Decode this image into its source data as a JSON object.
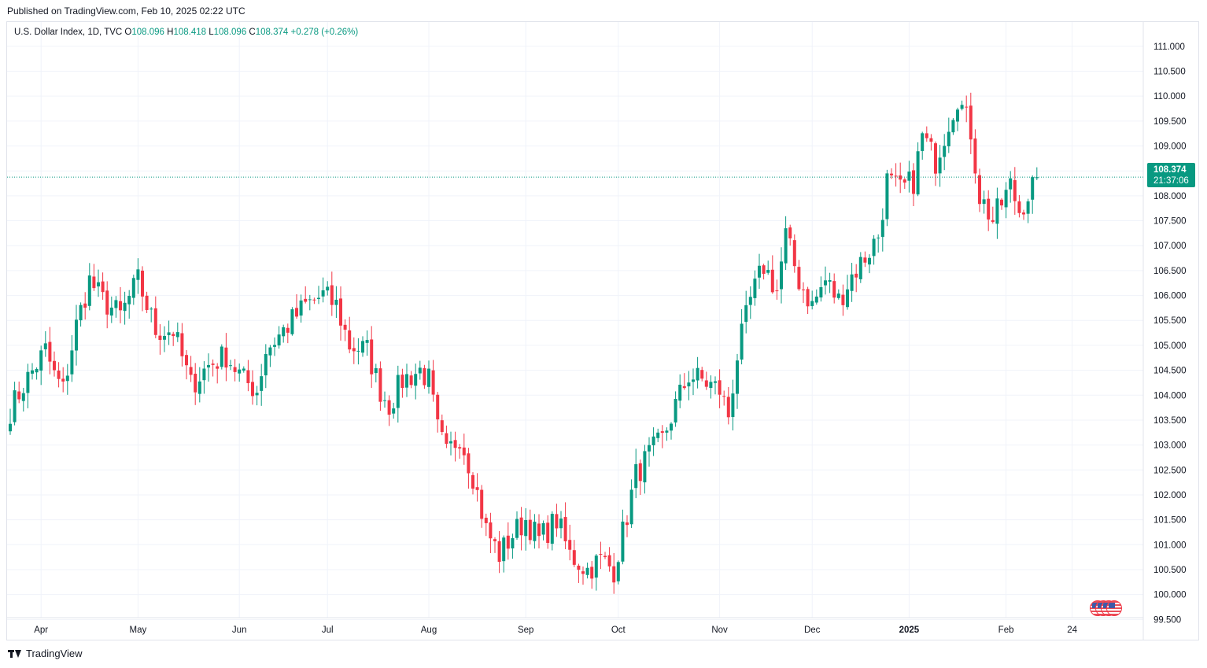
{
  "published": "Published on TradingView.com, Feb 10, 2025 02:22 UTC",
  "legend": {
    "symbol": "U.S. Dollar Index, 1D, TVC",
    "o_label": "O",
    "o_value": "108.096",
    "h_label": "H",
    "h_value": "108.418",
    "l_label": "L",
    "l_value": "108.096",
    "c_label": "C",
    "c_value": "108.374",
    "change": "+0.278 (+0.26%)"
  },
  "price_tag": {
    "price": "108.374",
    "countdown": "21:37:06"
  },
  "footer": {
    "brand": "TradingView"
  },
  "colors": {
    "up": "#089981",
    "down": "#f23645",
    "grid": "#f0f3fa",
    "last_price_line": "#089981"
  },
  "chart_data": {
    "type": "candlestick",
    "title": "U.S. Dollar Index, 1D, TVC",
    "ylim": [
      99.3,
      111.25
    ],
    "y_ticks": [
      "111.000",
      "110.500",
      "110.000",
      "109.500",
      "109.000",
      "108.500",
      "108.000",
      "107.500",
      "107.000",
      "106.500",
      "106.000",
      "105.500",
      "105.000",
      "104.500",
      "104.000",
      "103.500",
      "103.000",
      "102.500",
      "102.000",
      "101.500",
      "101.000",
      "100.500",
      "100.000",
      "99.500"
    ],
    "x_ticks": [
      {
        "label": "Apr",
        "index": 7,
        "bold": false
      },
      {
        "label": "May",
        "index": 29,
        "bold": false
      },
      {
        "label": "Jun",
        "index": 52,
        "bold": false
      },
      {
        "label": "Jul",
        "index": 72,
        "bold": false
      },
      {
        "label": "Aug",
        "index": 95,
        "bold": false
      },
      {
        "label": "Sep",
        "index": 117,
        "bold": false
      },
      {
        "label": "Oct",
        "index": 138,
        "bold": false
      },
      {
        "label": "Nov",
        "index": 161,
        "bold": false
      },
      {
        "label": "Dec",
        "index": 182,
        "bold": false
      },
      {
        "label": "2025",
        "index": 204,
        "bold": true
      },
      {
        "label": "Feb",
        "index": 226,
        "bold": false
      },
      {
        "label": "24",
        "index": 241,
        "bold": false
      }
    ],
    "last_price": 108.374,
    "waypoints": [
      [
        0,
        103.7
      ],
      [
        3,
        104.2
      ],
      [
        8,
        104.9
      ],
      [
        10,
        104.4
      ],
      [
        12,
        104.1
      ],
      [
        15,
        105.4
      ],
      [
        18,
        106.3
      ],
      [
        21,
        105.9
      ],
      [
        25,
        105.6
      ],
      [
        29,
        106.3
      ],
      [
        33,
        105.3
      ],
      [
        37,
        105.3
      ],
      [
        41,
        104.2
      ],
      [
        45,
        104.6
      ],
      [
        49,
        104.8
      ],
      [
        53,
        104.3
      ],
      [
        56,
        104.1
      ],
      [
        58,
        104.9
      ],
      [
        62,
        105.3
      ],
      [
        67,
        105.8
      ],
      [
        71,
        106.0
      ],
      [
        74,
        105.8
      ],
      [
        77,
        105.0
      ],
      [
        81,
        104.9
      ],
      [
        84,
        104.1
      ],
      [
        86,
        103.8
      ],
      [
        89,
        104.3
      ],
      [
        93,
        104.5
      ],
      [
        95,
        104.3
      ],
      [
        97,
        103.3
      ],
      [
        99,
        102.8
      ],
      [
        102,
        103.2
      ],
      [
        105,
        102.4
      ],
      [
        108,
        101.3
      ],
      [
        111,
        100.8
      ],
      [
        114,
        101.2
      ],
      [
        117,
        101.5
      ],
      [
        120,
        101.1
      ],
      [
        124,
        101.5
      ],
      [
        127,
        100.8
      ],
      [
        131,
        100.5
      ],
      [
        134,
        100.7
      ],
      [
        137,
        100.5
      ],
      [
        140,
        101.6
      ],
      [
        142,
        102.4
      ],
      [
        145,
        102.8
      ],
      [
        148,
        103.1
      ],
      [
        151,
        103.8
      ],
      [
        154,
        104.4
      ],
      [
        157,
        104.3
      ],
      [
        161,
        104.1
      ],
      [
        163,
        103.6
      ],
      [
        165,
        104.8
      ],
      [
        168,
        105.9
      ],
      [
        171,
        106.6
      ],
      [
        174,
        106.1
      ],
      [
        176,
        107.2
      ],
      [
        179,
        106.3
      ],
      [
        182,
        105.8
      ],
      [
        185,
        106.3
      ],
      [
        188,
        105.9
      ],
      [
        191,
        106.4
      ],
      [
        195,
        106.9
      ],
      [
        197,
        107.2
      ],
      [
        199,
        108.3
      ],
      [
        202,
        108.1
      ],
      [
        205,
        108.3
      ],
      [
        207,
        109.2
      ],
      [
        210,
        108.7
      ],
      [
        213,
        109.5
      ],
      [
        215,
        110.0
      ],
      [
        218,
        109.3
      ],
      [
        220,
        108.0
      ],
      [
        223,
        107.5
      ],
      [
        227,
        108.2
      ],
      [
        229,
        107.7
      ],
      [
        233,
        108.374
      ]
    ],
    "count": 234
  }
}
